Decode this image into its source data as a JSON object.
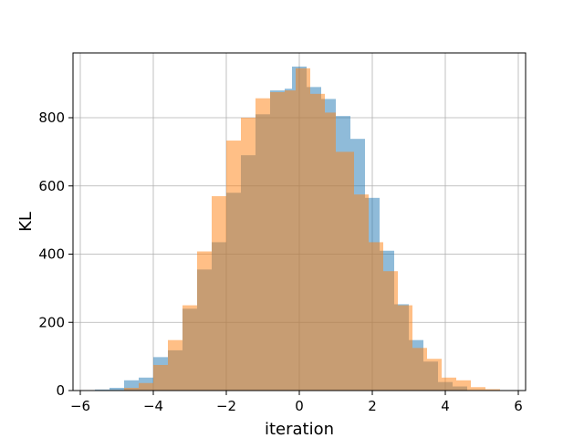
{
  "chart_data": {
    "type": "bar",
    "subtype": "overlapping-histogram",
    "title": "",
    "xlabel": "iteration",
    "ylabel": "KL",
    "xlim": [
      -6.2,
      6.2
    ],
    "ylim": [
      0,
      990
    ],
    "xticks": [
      -6,
      -4,
      -2,
      0,
      2,
      4,
      6
    ],
    "xtick_labels": [
      "−6",
      "−4",
      "−2",
      "0",
      "2",
      "4",
      "6"
    ],
    "yticks": [
      0,
      200,
      400,
      600,
      800
    ],
    "ytick_labels": [
      "0",
      "200",
      "400",
      "600",
      "800"
    ],
    "grid": true,
    "legend": "none",
    "series": [
      {
        "color": "#1f77b4",
        "opacity": 0.5,
        "bins": [
          [
            -5.6,
            -5.2,
            3
          ],
          [
            -5.2,
            -4.8,
            8
          ],
          [
            -4.8,
            -4.4,
            30
          ],
          [
            -4.4,
            -4.0,
            38
          ],
          [
            -4.0,
            -3.6,
            98
          ],
          [
            -3.6,
            -3.2,
            118
          ],
          [
            -3.2,
            -2.8,
            240
          ],
          [
            -2.8,
            -2.4,
            355
          ],
          [
            -2.4,
            -2.0,
            435
          ],
          [
            -2.0,
            -1.6,
            580
          ],
          [
            -1.6,
            -1.2,
            690
          ],
          [
            -1.2,
            -0.8,
            810
          ],
          [
            -0.8,
            -0.4,
            880
          ],
          [
            -0.4,
            -0.2,
            885
          ],
          [
            -0.2,
            0.2,
            950
          ],
          [
            0.2,
            0.6,
            890
          ],
          [
            0.6,
            1.0,
            855
          ],
          [
            1.0,
            1.4,
            805
          ],
          [
            1.4,
            1.8,
            738
          ],
          [
            1.8,
            2.2,
            565
          ],
          [
            2.2,
            2.6,
            410
          ],
          [
            2.6,
            3.0,
            253
          ],
          [
            3.0,
            3.4,
            148
          ],
          [
            3.4,
            3.8,
            85
          ],
          [
            3.8,
            4.2,
            25
          ],
          [
            4.2,
            4.6,
            12
          ]
        ]
      },
      {
        "color": "#ff7f0e",
        "opacity": 0.5,
        "bins": [
          [
            -4.8,
            -4.4,
            8
          ],
          [
            -4.4,
            -4.0,
            22
          ],
          [
            -4.0,
            -3.6,
            75
          ],
          [
            -3.6,
            -3.2,
            148
          ],
          [
            -3.2,
            -2.8,
            250
          ],
          [
            -2.8,
            -2.4,
            408
          ],
          [
            -2.4,
            -2.0,
            570
          ],
          [
            -2.0,
            -1.6,
            733
          ],
          [
            -1.6,
            -1.2,
            800
          ],
          [
            -1.2,
            -0.8,
            857
          ],
          [
            -0.8,
            -0.4,
            875
          ],
          [
            -0.4,
            -0.1,
            880
          ],
          [
            -0.1,
            0.3,
            945
          ],
          [
            0.3,
            0.7,
            870
          ],
          [
            0.7,
            1.0,
            815
          ],
          [
            1.0,
            1.5,
            700
          ],
          [
            1.5,
            1.9,
            575
          ],
          [
            1.9,
            2.3,
            435
          ],
          [
            2.3,
            2.7,
            350
          ],
          [
            2.7,
            3.1,
            250
          ],
          [
            3.1,
            3.5,
            125
          ],
          [
            3.5,
            3.9,
            93
          ],
          [
            3.9,
            4.3,
            38
          ],
          [
            4.3,
            4.7,
            30
          ],
          [
            4.7,
            5.1,
            10
          ],
          [
            5.1,
            5.5,
            4
          ]
        ]
      }
    ]
  }
}
